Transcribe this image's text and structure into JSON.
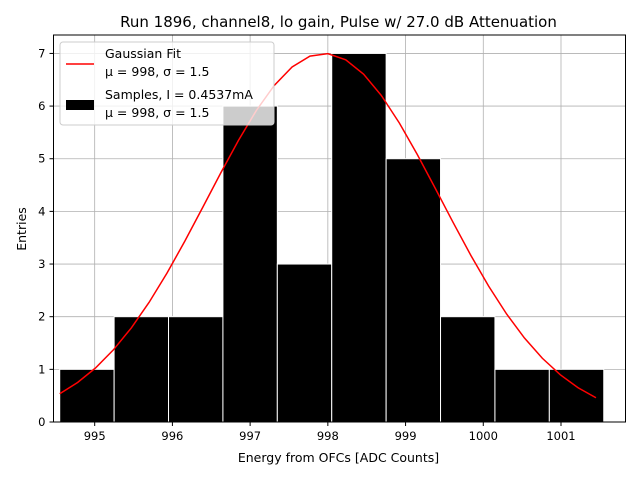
{
  "chart_data": {
    "type": "bar",
    "title": "Run 1896, channel8, lo gain, Pulse w/ 27.0 dB Attenuation",
    "xlabel": "Energy from OFCs [ADC Counts]",
    "ylabel": "Entries",
    "xlim": [
      994.47,
      1001.83
    ],
    "ylim": [
      0,
      7.35
    ],
    "xticks": [
      995,
      996,
      997,
      998,
      999,
      1000,
      1001
    ],
    "yticks": [
      0,
      1,
      2,
      3,
      4,
      5,
      6,
      7
    ],
    "grid": true,
    "legend_position": "top-left",
    "histogram": {
      "name": "Samples, I = 0.4537mA",
      "stats": "μ = 998, σ = 1.5",
      "color": "#000000",
      "bins": [
        {
          "lo": 994.55,
          "hi": 995.25,
          "count": 1
        },
        {
          "lo": 995.25,
          "hi": 995.95,
          "count": 2
        },
        {
          "lo": 995.95,
          "hi": 996.65,
          "count": 2
        },
        {
          "lo": 996.65,
          "hi": 997.35,
          "count": 6
        },
        {
          "lo": 997.35,
          "hi": 998.05,
          "count": 3
        },
        {
          "lo": 998.05,
          "hi": 998.75,
          "count": 7
        },
        {
          "lo": 998.75,
          "hi": 999.45,
          "count": 5
        },
        {
          "lo": 999.45,
          "hi": 1000.15,
          "count": 2
        },
        {
          "lo": 1000.15,
          "hi": 1000.85,
          "count": 1
        },
        {
          "lo": 1000.85,
          "hi": 1001.55,
          "count": 1
        }
      ]
    },
    "fit": {
      "name": "Gaussian Fit",
      "stats": "μ = 998, σ = 1.5",
      "color": "#ff0000",
      "mean": 997.95,
      "sigma": 1.5,
      "amplitude": 7.0,
      "x_range": [
        994.55,
        1001.45
      ]
    }
  }
}
